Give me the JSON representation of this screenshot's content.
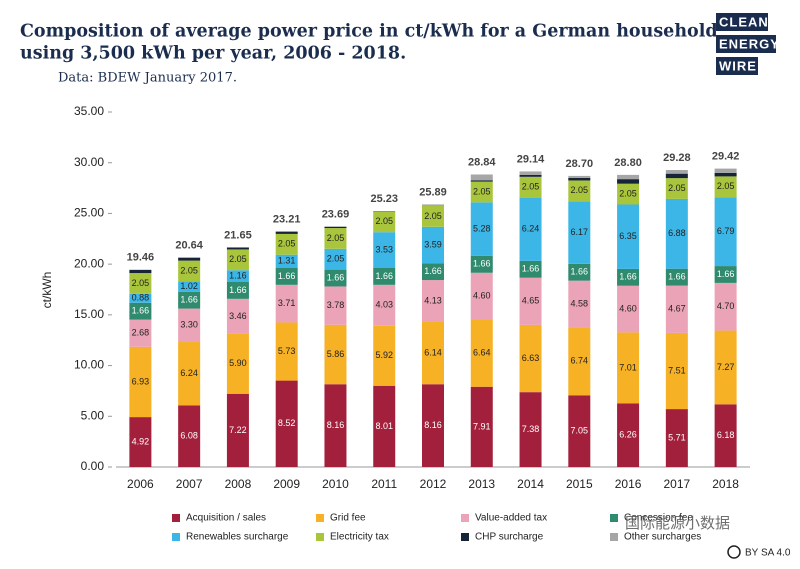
{
  "chart_data": {
    "type": "stacked-bar",
    "title": [
      "Composition of average power price in ct/kWh for a German household",
      "using 3,500 kWh per year, 2006 - 2018."
    ],
    "subtitle": "Data: BDEW January 2017.",
    "y_label": "ct/kWh",
    "logo": [
      "CLEAN",
      "ENERGY",
      "WIRE"
    ],
    "license": "BY SA 4.0",
    "watermark": "国际能源小数据",
    "categories": [
      "2006",
      "2007",
      "2008",
      "2009",
      "2010",
      "2011",
      "2012",
      "2013",
      "2014",
      "2015",
      "2016",
      "2017",
      "2018"
    ],
    "ylim": [
      0,
      35
    ],
    "yticks": [
      {
        "value": 0,
        "label": "0.00"
      },
      {
        "value": 5,
        "label": "5.00"
      },
      {
        "value": 10,
        "label": "10.00"
      },
      {
        "value": 15,
        "label": "15.00"
      },
      {
        "value": 20,
        "label": "20.00"
      },
      {
        "value": 25,
        "label": "25.00"
      },
      {
        "value": 30,
        "label": "30.00"
      },
      {
        "value": 35,
        "label": "35.00"
      }
    ],
    "series": [
      {
        "name": "Acquisition / sales",
        "color": "#a3203c",
        "label_color": "#ffffff",
        "values": [
          4.92,
          6.08,
          7.22,
          8.52,
          8.16,
          8.01,
          8.16,
          7.91,
          7.38,
          7.05,
          6.26,
          5.71,
          6.18
        ],
        "value_labels": [
          "4.92",
          "6.08",
          "7.22",
          "8.52",
          "8.16",
          "8.01",
          "8.16",
          "7.91",
          "7.38",
          "7.05",
          "6.26",
          "5.71",
          "6.18"
        ]
      },
      {
        "name": "Grid fee",
        "color": "#f7b124",
        "label_color": "#222222",
        "values": [
          6.93,
          6.24,
          5.9,
          5.73,
          5.86,
          5.92,
          6.14,
          6.64,
          6.63,
          6.74,
          7.01,
          7.51,
          7.27
        ],
        "value_labels": [
          "6.93",
          "6.24",
          "5.90",
          "5.73",
          "5.86",
          "5.92",
          "6.14",
          "6.64",
          "6.63",
          "6.74",
          "7.01",
          "7.51",
          "7.27"
        ]
      },
      {
        "name": "Value-added tax",
        "color": "#eba3b7",
        "label_color": "#222222",
        "values": [
          2.68,
          3.3,
          3.46,
          3.71,
          3.78,
          4.03,
          4.13,
          4.6,
          4.65,
          4.58,
          4.6,
          4.67,
          4.7
        ],
        "value_labels": [
          "2.68",
          "3.30",
          "3.46",
          "3.71",
          "3.78",
          "4.03",
          "4.13",
          "4.60",
          "4.65",
          "4.58",
          "4.60",
          "4.67",
          "4.70"
        ]
      },
      {
        "name": "Concession fee",
        "color": "#2f8a6e",
        "label_color": "#ffffff",
        "values": [
          1.66,
          1.66,
          1.66,
          1.66,
          1.66,
          1.66,
          1.66,
          1.66,
          1.66,
          1.66,
          1.66,
          1.66,
          1.66
        ],
        "value_labels": [
          "1.66",
          "1.66",
          "1.66",
          "1.66",
          "1.66",
          "1.66",
          "1.66",
          "1.66",
          "1.66",
          "1.66",
          "1.66",
          "1.66",
          "1.66"
        ]
      },
      {
        "name": "Renewables surcharge",
        "color": "#3cb6e6",
        "label_color": "#222222",
        "values": [
          0.88,
          1.02,
          1.16,
          1.31,
          2.05,
          3.53,
          3.59,
          5.28,
          6.24,
          6.17,
          6.35,
          6.88,
          6.79
        ],
        "value_labels": [
          "0.88",
          "1.02",
          "1.16",
          "1.31",
          "2.05",
          "3.53",
          "3.59",
          "5.28",
          "6.24",
          "6.17",
          "6.35",
          "6.88",
          "6.79"
        ]
      },
      {
        "name": "Electricity tax",
        "color": "#a9c53c",
        "label_color": "#222222",
        "values": [
          2.05,
          2.05,
          2.05,
          2.05,
          2.05,
          2.05,
          2.05,
          2.05,
          2.05,
          2.05,
          2.05,
          2.05,
          2.05
        ],
        "value_labels": [
          "2.05",
          "2.05",
          "2.05",
          "2.05",
          "2.05",
          "2.05",
          "2.05",
          "2.05",
          "2.05",
          "2.05",
          "2.05",
          "2.05",
          "2.05"
        ]
      },
      {
        "name": "CHP surcharge",
        "color": "#16243a",
        "values": [
          0.31,
          0.29,
          0.19,
          0.23,
          0.13,
          0.03,
          0.02,
          0.13,
          0.18,
          0.25,
          0.45,
          0.44,
          0.35
        ]
      },
      {
        "name": "Other surcharges",
        "color": "#a6a6a6",
        "values": [
          0.03,
          0,
          0.01,
          0,
          0,
          0,
          0.14,
          0.57,
          0.35,
          0.2,
          0.42,
          0.36,
          0.42
        ]
      }
    ],
    "totals": {
      "values": [
        19.46,
        20.64,
        21.65,
        23.21,
        23.69,
        25.23,
        25.89,
        28.84,
        29.14,
        28.7,
        28.8,
        29.28,
        29.42
      ],
      "value_labels": [
        "19.46",
        "20.64",
        "21.65",
        "23.21",
        "23.69",
        "25.23",
        "25.89",
        "28.84",
        "29.14",
        "28.70",
        "28.80",
        "29.28",
        "29.42"
      ]
    }
  }
}
